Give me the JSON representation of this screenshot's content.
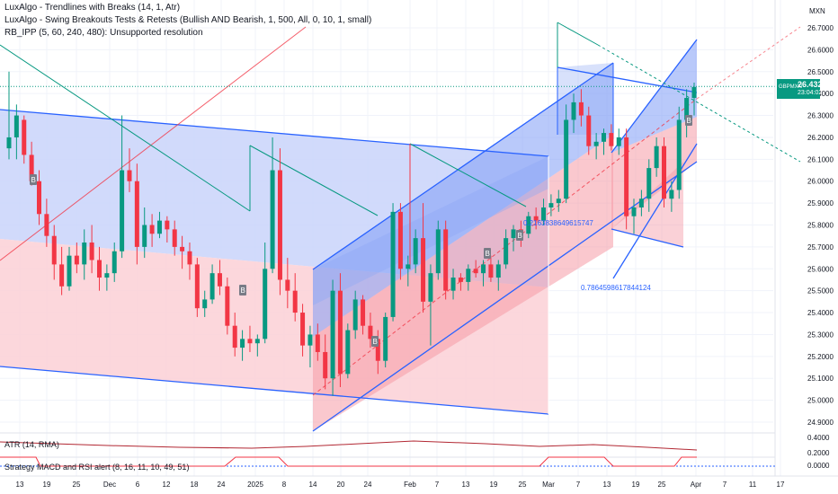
{
  "indicators": [
    "LuxAlgo - Trendlines with Breaks (14, 1, Atr)",
    "LuxAlgo - Swing Breakouts Tests & Retests (Bullish AND Bearish, 1, 500, All, 0, 10, 1, small)",
    "RB_IPP (5, 60, 240, 480): Unsupported resolution"
  ],
  "currency": "MXN",
  "symbol": "GBPMXN",
  "last_price": "26.4326",
  "countdown": "23:04:02",
  "atr_label": "ATR (14, RMA)",
  "strategy_label": "Strategy MACD and RSI alert (8, 16, 11, 10, 49, 51)",
  "atr_ticks": [
    "0.4000",
    "0.2000"
  ],
  "strategy_ticks": [
    "0.0000"
  ],
  "fib_labels": [
    "0.2163838649615747",
    "0.7864598617844124"
  ],
  "marker_label": "B",
  "chart_data": {
    "type": "candlestick",
    "ylim": [
      24.85,
      26.8
    ],
    "y_ticks": [
      26.7,
      26.6,
      26.5,
      26.4,
      26.3,
      26.2,
      26.1,
      26.0,
      25.9,
      25.8,
      25.7,
      25.6,
      25.5,
      25.4,
      25.3,
      25.2,
      25.1,
      25.0,
      24.9
    ],
    "x_ticks": [
      "13",
      "19",
      "25",
      "Dec",
      "6",
      "12",
      "18",
      "24",
      "2025",
      "8",
      "14",
      "20",
      "24",
      "Feb",
      "7",
      "13",
      "19",
      "25",
      "Mar",
      "7",
      "13",
      "19",
      "25",
      "Apr",
      "7",
      "11",
      "17"
    ],
    "last_value": 26.4326,
    "candles": [
      {
        "o": 26.15,
        "h": 26.5,
        "l": 26.1,
        "c": 26.2
      },
      {
        "o": 26.2,
        "h": 26.35,
        "l": 26.1,
        "c": 26.3
      },
      {
        "o": 26.28,
        "h": 26.3,
        "l": 26.08,
        "c": 26.12
      },
      {
        "o": 26.12,
        "h": 26.18,
        "l": 25.98,
        "c": 26.0
      },
      {
        "o": 26.0,
        "h": 26.05,
        "l": 25.8,
        "c": 25.85
      },
      {
        "o": 25.85,
        "h": 25.92,
        "l": 25.7,
        "c": 25.75
      },
      {
        "o": 25.75,
        "h": 25.8,
        "l": 25.55,
        "c": 25.62
      },
      {
        "o": 25.62,
        "h": 25.7,
        "l": 25.48,
        "c": 25.52
      },
      {
        "o": 25.52,
        "h": 25.7,
        "l": 25.5,
        "c": 25.66
      },
      {
        "o": 25.66,
        "h": 25.72,
        "l": 25.58,
        "c": 25.62
      },
      {
        "o": 25.62,
        "h": 25.78,
        "l": 25.55,
        "c": 25.72
      },
      {
        "o": 25.72,
        "h": 25.8,
        "l": 25.58,
        "c": 25.64
      },
      {
        "o": 25.64,
        "h": 25.7,
        "l": 25.5,
        "c": 25.56
      },
      {
        "o": 25.56,
        "h": 25.62,
        "l": 25.5,
        "c": 25.58
      },
      {
        "o": 25.58,
        "h": 25.72,
        "l": 25.54,
        "c": 25.68
      },
      {
        "o": 25.68,
        "h": 26.3,
        "l": 25.65,
        "c": 26.05
      },
      {
        "o": 26.05,
        "h": 26.15,
        "l": 25.95,
        "c": 26.0
      },
      {
        "o": 26.0,
        "h": 26.08,
        "l": 25.62,
        "c": 25.7
      },
      {
        "o": 25.7,
        "h": 25.88,
        "l": 25.65,
        "c": 25.8
      },
      {
        "o": 25.8,
        "h": 25.85,
        "l": 25.7,
        "c": 25.76
      },
      {
        "o": 25.76,
        "h": 25.86,
        "l": 25.74,
        "c": 25.82
      },
      {
        "o": 25.82,
        "h": 25.84,
        "l": 25.72,
        "c": 25.78
      },
      {
        "o": 25.78,
        "h": 25.82,
        "l": 25.66,
        "c": 25.7
      },
      {
        "o": 25.7,
        "h": 25.75,
        "l": 25.6,
        "c": 25.68
      },
      {
        "o": 25.68,
        "h": 25.72,
        "l": 25.55,
        "c": 25.62
      },
      {
        "o": 25.62,
        "h": 25.65,
        "l": 25.38,
        "c": 25.42
      },
      {
        "o": 25.42,
        "h": 25.5,
        "l": 25.38,
        "c": 25.46
      },
      {
        "o": 25.46,
        "h": 25.62,
        "l": 25.44,
        "c": 25.58
      },
      {
        "o": 25.58,
        "h": 25.64,
        "l": 25.48,
        "c": 25.52
      },
      {
        "o": 25.52,
        "h": 25.56,
        "l": 25.3,
        "c": 25.34
      },
      {
        "o": 25.34,
        "h": 25.4,
        "l": 25.2,
        "c": 25.24
      },
      {
        "o": 25.24,
        "h": 25.32,
        "l": 25.18,
        "c": 25.28
      },
      {
        "o": 25.28,
        "h": 25.34,
        "l": 25.22,
        "c": 25.26
      },
      {
        "o": 25.26,
        "h": 25.3,
        "l": 25.2,
        "c": 25.28
      },
      {
        "o": 25.28,
        "h": 25.72,
        "l": 25.26,
        "c": 25.6
      },
      {
        "o": 25.6,
        "h": 26.2,
        "l": 25.58,
        "c": 26.05
      },
      {
        "o": 26.05,
        "h": 26.15,
        "l": 25.48,
        "c": 25.55
      },
      {
        "o": 25.55,
        "h": 25.65,
        "l": 25.42,
        "c": 25.5
      },
      {
        "o": 25.5,
        "h": 25.58,
        "l": 25.36,
        "c": 25.4
      },
      {
        "o": 25.4,
        "h": 25.44,
        "l": 25.2,
        "c": 25.25
      },
      {
        "o": 25.25,
        "h": 25.34,
        "l": 25.15,
        "c": 25.3
      },
      {
        "o": 25.3,
        "h": 25.35,
        "l": 25.18,
        "c": 25.22
      },
      {
        "o": 25.22,
        "h": 25.3,
        "l": 25.05,
        "c": 25.1
      },
      {
        "o": 25.1,
        "h": 25.55,
        "l": 25.02,
        "c": 25.5
      },
      {
        "o": 25.5,
        "h": 25.58,
        "l": 25.06,
        "c": 25.12
      },
      {
        "o": 25.12,
        "h": 25.35,
        "l": 25.1,
        "c": 25.32
      },
      {
        "o": 25.32,
        "h": 25.5,
        "l": 25.28,
        "c": 25.46
      },
      {
        "o": 25.46,
        "h": 25.48,
        "l": 25.3,
        "c": 25.34
      },
      {
        "o": 25.34,
        "h": 25.4,
        "l": 25.24,
        "c": 25.28
      },
      {
        "o": 25.28,
        "h": 25.32,
        "l": 25.12,
        "c": 25.18
      },
      {
        "o": 25.18,
        "h": 25.4,
        "l": 25.15,
        "c": 25.38
      },
      {
        "o": 25.38,
        "h": 25.9,
        "l": 25.36,
        "c": 25.86
      },
      {
        "o": 25.86,
        "h": 25.9,
        "l": 25.55,
        "c": 25.6
      },
      {
        "o": 25.6,
        "h": 25.66,
        "l": 25.52,
        "c": 25.62
      },
      {
        "o": 25.62,
        "h": 25.78,
        "l": 25.58,
        "c": 25.74
      },
      {
        "o": 25.74,
        "h": 25.9,
        "l": 25.4,
        "c": 25.45
      },
      {
        "o": 25.45,
        "h": 25.62,
        "l": 25.25,
        "c": 25.58
      },
      {
        "o": 25.58,
        "h": 25.82,
        "l": 25.55,
        "c": 25.78
      },
      {
        "o": 25.78,
        "h": 25.82,
        "l": 25.46,
        "c": 25.5
      },
      {
        "o": 25.5,
        "h": 25.6,
        "l": 25.46,
        "c": 25.56
      },
      {
        "o": 25.56,
        "h": 25.58,
        "l": 25.5,
        "c": 25.54
      },
      {
        "o": 25.54,
        "h": 25.62,
        "l": 25.5,
        "c": 25.6
      },
      {
        "o": 25.6,
        "h": 25.64,
        "l": 25.56,
        "c": 25.58
      },
      {
        "o": 25.58,
        "h": 25.64,
        "l": 25.52,
        "c": 25.62
      },
      {
        "o": 25.62,
        "h": 25.66,
        "l": 25.54,
        "c": 25.56
      },
      {
        "o": 25.56,
        "h": 25.64,
        "l": 25.5,
        "c": 25.62
      },
      {
        "o": 25.62,
        "h": 25.78,
        "l": 25.6,
        "c": 25.74
      },
      {
        "o": 25.74,
        "h": 25.8,
        "l": 25.68,
        "c": 25.78
      },
      {
        "o": 25.78,
        "h": 25.82,
        "l": 25.7,
        "c": 25.76
      },
      {
        "o": 25.76,
        "h": 25.86,
        "l": 25.74,
        "c": 25.84
      },
      {
        "o": 25.84,
        "h": 25.88,
        "l": 25.78,
        "c": 25.82
      },
      {
        "o": 25.82,
        "h": 25.92,
        "l": 25.8,
        "c": 25.88
      },
      {
        "o": 25.88,
        "h": 25.94,
        "l": 25.84,
        "c": 25.9
      },
      {
        "o": 25.9,
        "h": 25.96,
        "l": 25.86,
        "c": 25.92
      },
      {
        "o": 25.92,
        "h": 26.35,
        "l": 25.9,
        "c": 26.28
      },
      {
        "o": 26.28,
        "h": 26.4,
        "l": 26.22,
        "c": 26.36
      },
      {
        "o": 26.36,
        "h": 26.42,
        "l": 26.25,
        "c": 26.3
      },
      {
        "o": 26.3,
        "h": 26.34,
        "l": 26.12,
        "c": 26.16
      },
      {
        "o": 26.16,
        "h": 26.22,
        "l": 26.1,
        "c": 26.18
      },
      {
        "o": 26.18,
        "h": 26.24,
        "l": 26.12,
        "c": 26.22
      },
      {
        "o": 26.22,
        "h": 26.26,
        "l": 26.14,
        "c": 26.16
      },
      {
        "o": 26.16,
        "h": 26.24,
        "l": 26.12,
        "c": 26.2
      },
      {
        "o": 26.2,
        "h": 26.24,
        "l": 25.78,
        "c": 25.84
      },
      {
        "o": 25.84,
        "h": 25.92,
        "l": 25.76,
        "c": 25.88
      },
      {
        "o": 25.88,
        "h": 25.96,
        "l": 25.84,
        "c": 25.92
      },
      {
        "o": 25.92,
        "h": 26.1,
        "l": 25.86,
        "c": 26.06
      },
      {
        "o": 26.06,
        "h": 26.2,
        "l": 26.02,
        "c": 26.16
      },
      {
        "o": 26.16,
        "h": 26.2,
        "l": 25.88,
        "c": 25.92
      },
      {
        "o": 25.92,
        "h": 26.0,
        "l": 25.86,
        "c": 25.96
      },
      {
        "o": 25.96,
        "h": 26.34,
        "l": 25.92,
        "c": 26.28
      },
      {
        "o": 26.28,
        "h": 26.42,
        "l": 26.2,
        "c": 26.38
      },
      {
        "o": 26.38,
        "h": 26.45,
        "l": 26.3,
        "c": 26.43
      }
    ]
  },
  "colors": {
    "up": "#089981",
    "down": "#f23645",
    "blue_line": "#2962ff",
    "fill_blue": "#8fa9f5",
    "fill_red": "#f7a9b3",
    "price_line": "#089981"
  }
}
